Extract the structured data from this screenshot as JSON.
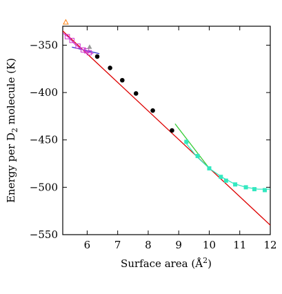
{
  "chart_data": {
    "type": "scatter",
    "xlabel_main": "Surface area (Å",
    "xlabel_sup": "2",
    "xlabel_end": ")",
    "ylabel_main": "Energy per D",
    "ylabel_sub": "2",
    "ylabel_end": " molecule (K)",
    "xlim": [
      5.2,
      12
    ],
    "ylim": [
      -550,
      -330
    ],
    "xticks": [
      6,
      7,
      8,
      9,
      10,
      11,
      12
    ],
    "yticks": [
      -350,
      -400,
      -450,
      -500,
      -550
    ],
    "grid": false,
    "series": [
      {
        "marker": "circle-filled",
        "color": "#000000",
        "x": [
          6.33,
          6.75,
          7.15,
          7.6,
          8.15,
          8.78
        ],
        "y": [
          -362,
          -374,
          -387,
          -401,
          -419,
          -440
        ]
      },
      {
        "marker": "square-filled",
        "color": "#33e8c0",
        "x": [
          9.25,
          9.62,
          10.0,
          10.38,
          10.55,
          10.85,
          11.2,
          11.48,
          11.82
        ],
        "y": [
          -452,
          -467,
          -480,
          -489,
          -493,
          -497,
          -500,
          -502,
          -503
        ]
      },
      {
        "marker": "square-open",
        "color": "#cc33cc",
        "x": [
          5.35,
          5.5,
          5.7,
          5.87,
          5.98,
          6.07
        ],
        "y": [
          -341,
          -345,
          -351,
          -355,
          -356,
          -358
        ]
      },
      {
        "marker": "triangle-filled",
        "color": "#999999",
        "x": [
          6.08
        ],
        "y": [
          -352
        ]
      },
      {
        "marker": "triangle-open",
        "color": "#ff7f0e",
        "x": [
          5.3
        ],
        "y": [
          -326
        ]
      }
    ],
    "lines": [
      {
        "color": "#dd0000",
        "x": [
          5.2,
          12.0
        ],
        "y": [
          -335,
          -540
        ]
      },
      {
        "color": "#33cc33",
        "x": [
          8.88,
          10.0
        ],
        "y": [
          -433,
          -480
        ]
      },
      {
        "color": "#3333cc",
        "x": [
          5.5,
          6.4
        ],
        "y": [
          -352,
          -359
        ]
      },
      {
        "color": "#33e8c0",
        "x": [
          9.25,
          9.6,
          10.0,
          10.4,
          10.8,
          11.2,
          11.6,
          12.0
        ],
        "y": [
          -454,
          -468,
          -480,
          -489,
          -496,
          -500,
          -502,
          -502
        ]
      },
      {
        "color": "#cc33cc",
        "x": [
          5.2,
          5.4,
          5.6,
          5.8,
          6.0,
          6.2
        ],
        "y": [
          -337,
          -342,
          -349,
          -354,
          -357,
          -359
        ]
      }
    ]
  }
}
